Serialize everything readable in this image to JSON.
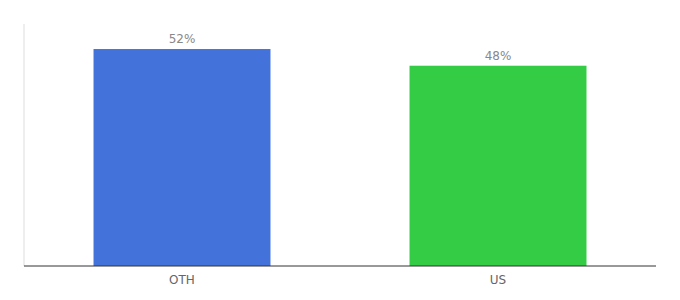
{
  "chart_data": {
    "type": "bar",
    "categories": [
      "OTH",
      "US"
    ],
    "values": [
      52,
      48
    ],
    "value_labels": [
      "52%",
      "48%"
    ],
    "colors": [
      "#4472db",
      "#33cc44"
    ],
    "ylim": [
      0,
      58
    ],
    "grid": false,
    "data_labels": true,
    "tick_labels": "x"
  }
}
